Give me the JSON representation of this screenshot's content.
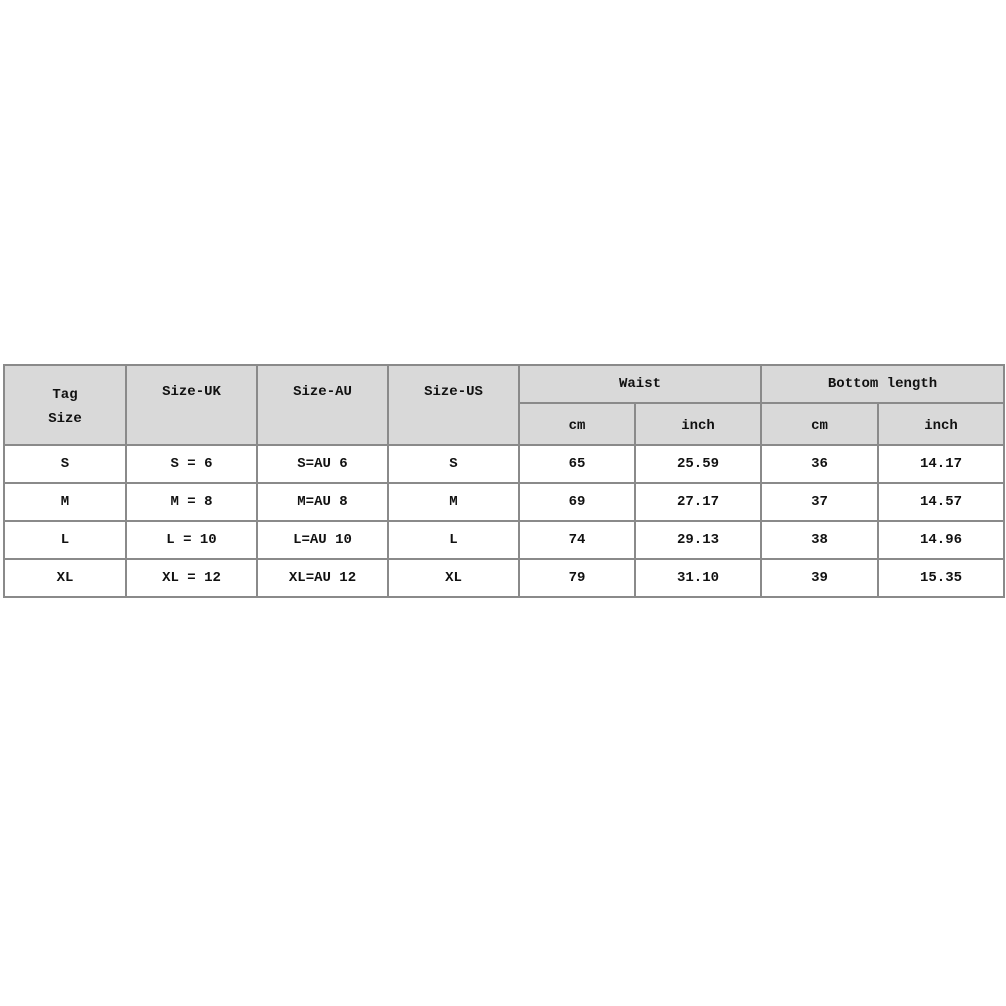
{
  "headers": {
    "tag_size": [
      "Tag",
      "Size"
    ],
    "size_uk": "Size-UK",
    "size_au": "Size-AU",
    "size_us": "Size-US",
    "waist": "Waist",
    "bottom_length": "Bottom length",
    "waist_units": [
      "cm",
      "inch"
    ],
    "bottom_units": [
      "cm",
      "inch"
    ]
  },
  "rows": [
    [
      "S",
      "S = 6",
      "S=AU 6",
      "S",
      "65",
      "25.59",
      "36",
      "14.17"
    ],
    [
      "M",
      "M = 8",
      "M=AU 8",
      "M",
      "69",
      "27.17",
      "37",
      "14.57"
    ],
    [
      "L",
      "L = 10",
      "L=AU 10",
      "L",
      "74",
      "29.13",
      "38",
      "14.96"
    ],
    [
      "XL",
      "XL = 12",
      "XL=AU 12",
      "XL",
      "79",
      "31.10",
      "39",
      "15.35"
    ]
  ],
  "colors": {
    "header_bg": "#d9d9d9",
    "border": "#8a8a8a"
  }
}
